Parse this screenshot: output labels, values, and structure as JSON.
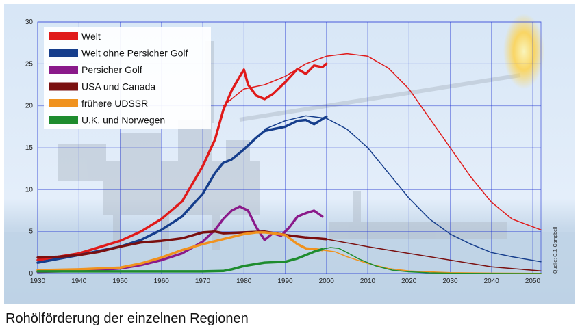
{
  "caption": "Rohölförderung der einzelnen Regionen",
  "source_note": "Quelle: C.J. Campbell",
  "chart_data": {
    "type": "line",
    "title": "",
    "xlabel": "",
    "ylabel": "",
    "xlim": [
      1930,
      2052
    ],
    "ylim": [
      0,
      30
    ],
    "x_ticks": [
      "1930",
      "1940",
      "1950",
      "1960",
      "1970",
      "1980",
      "1990",
      "2000",
      "2010",
      "2020",
      "2030",
      "2040",
      "2050"
    ],
    "y_ticks": [
      "0",
      "5",
      "10",
      "15",
      "20",
      "25",
      "30"
    ],
    "grid": true,
    "legend_position": "top-left",
    "series": [
      {
        "name": "Welt",
        "color": "#e01a1a",
        "width": 3.5,
        "x": [
          1930,
          1940,
          1950,
          1955,
          1960,
          1965,
          1970,
          1973,
          1975,
          1977,
          1979,
          1980,
          1981,
          1983,
          1985,
          1987,
          1990,
          1993,
          1995,
          1997,
          1999,
          2000
        ],
        "y": [
          1.6,
          2.4,
          3.9,
          5.0,
          6.5,
          8.6,
          12.8,
          16.0,
          19.5,
          21.8,
          23.5,
          24.3,
          22.5,
          21.2,
          20.8,
          21.4,
          22.8,
          24.4,
          23.8,
          24.8,
          24.6,
          25.0
        ]
      },
      {
        "name": "Welt",
        "color": "#e01a1a",
        "width": 1.5,
        "x": [
          1975,
          1980,
          1985,
          1990,
          1995,
          2000,
          2005,
          2010,
          2015,
          2020,
          2025,
          2030,
          2035,
          2040,
          2045,
          2052
        ],
        "y": [
          20,
          22,
          22.5,
          23.5,
          25,
          25.9,
          26.2,
          25.9,
          24.5,
          22,
          18.5,
          15,
          11.5,
          8.5,
          6.5,
          5.2
        ]
      },
      {
        "name": "Welt ohne Persicher Golf",
        "color": "#163e8c",
        "width": 3.5,
        "x": [
          1930,
          1940,
          1950,
          1955,
          1960,
          1965,
          1970,
          1973,
          1975,
          1977,
          1980,
          1983,
          1985,
          1987,
          1990,
          1993,
          1995,
          1997,
          1999,
          2000
        ],
        "y": [
          1.3,
          2.2,
          3.2,
          4.0,
          5.2,
          6.8,
          9.5,
          12.0,
          13.2,
          13.6,
          14.8,
          16.2,
          17.0,
          17.2,
          17.5,
          18.2,
          18.3,
          17.8,
          18.4,
          18.7
        ]
      },
      {
        "name": "Welt ohne Persicher Golf",
        "color": "#163e8c",
        "width": 1.5,
        "x": [
          1985,
          1990,
          1995,
          2000,
          2005,
          2010,
          2015,
          2020,
          2025,
          2030,
          2035,
          2040,
          2045,
          2052
        ],
        "y": [
          17.2,
          18.2,
          18.8,
          18.5,
          17.2,
          15.0,
          12.0,
          9.0,
          6.5,
          4.7,
          3.5,
          2.5,
          2.0,
          1.4
        ]
      },
      {
        "name": "Persicher Golf",
        "color": "#8a1a8a",
        "width": 3.5,
        "x": [
          1930,
          1940,
          1950,
          1955,
          1960,
          1965,
          1970,
          1973,
          1975,
          1977,
          1979,
          1981,
          1983,
          1985,
          1987,
          1989,
          1991,
          1993,
          1995,
          1997,
          1999
        ],
        "y": [
          0.2,
          0.3,
          0.6,
          1.0,
          1.6,
          2.4,
          3.8,
          5.2,
          6.5,
          7.5,
          8.0,
          7.5,
          5.5,
          4.0,
          4.8,
          4.5,
          5.5,
          6.8,
          7.2,
          7.5,
          6.8
        ]
      },
      {
        "name": "USA und Canada",
        "color": "#7a1010",
        "width": 3.5,
        "x": [
          1930,
          1935,
          1940,
          1945,
          1950,
          1955,
          1960,
          1965,
          1970,
          1973,
          1975,
          1980,
          1985,
          1990,
          1995,
          2000
        ],
        "y": [
          1.9,
          2.0,
          2.2,
          2.6,
          3.2,
          3.7,
          3.9,
          4.2,
          4.9,
          5.0,
          4.8,
          4.9,
          5.0,
          4.6,
          4.3,
          4.1
        ]
      },
      {
        "name": "USA und Canada",
        "color": "#7a1010",
        "width": 1.5,
        "x": [
          2000,
          2010,
          2020,
          2030,
          2040,
          2052
        ],
        "y": [
          4.1,
          3.2,
          2.4,
          1.6,
          0.8,
          0.3
        ]
      },
      {
        "name": "frühere UDSSR",
        "color": "#f0921e",
        "width": 3.5,
        "x": [
          1930,
          1940,
          1950,
          1955,
          1960,
          1965,
          1970,
          1975,
          1980,
          1983,
          1985,
          1987,
          1990,
          1993,
          1995,
          1997,
          1999
        ],
        "y": [
          0.4,
          0.5,
          0.7,
          1.2,
          1.9,
          2.8,
          3.5,
          4.1,
          4.7,
          4.9,
          4.9,
          4.8,
          4.6,
          3.5,
          3.0,
          2.9,
          2.8
        ]
      },
      {
        "name": "frühere UDSSR",
        "color": "#f0921e",
        "width": 1.5,
        "x": [
          1999,
          2002,
          2005,
          2010,
          2015,
          2020,
          2030,
          2040,
          2052
        ],
        "y": [
          2.8,
          2.6,
          2.0,
          1.2,
          0.6,
          0.3,
          0.1,
          0.05,
          0.02
        ]
      },
      {
        "name": "U.K. und Norwegen",
        "color": "#1e8c2e",
        "width": 3.5,
        "x": [
          1930,
          1940,
          1950,
          1960,
          1970,
          1975,
          1977,
          1980,
          1985,
          1990,
          1993,
          1995,
          1997,
          1999
        ],
        "y": [
          0.25,
          0.25,
          0.25,
          0.25,
          0.25,
          0.3,
          0.5,
          0.9,
          1.3,
          1.4,
          1.8,
          2.2,
          2.6,
          2.9
        ]
      },
      {
        "name": "U.K. und Norwegen",
        "color": "#1e8c2e",
        "width": 1.5,
        "x": [
          1999,
          2001,
          2003,
          2005,
          2008,
          2012,
          2016,
          2020,
          2025,
          2030,
          2040,
          2052
        ],
        "y": [
          2.9,
          3.1,
          3.0,
          2.5,
          1.7,
          0.9,
          0.4,
          0.2,
          0.08,
          0.03,
          0.01,
          0.0
        ]
      }
    ],
    "legend": [
      {
        "label": "Welt",
        "color": "#e01a1a"
      },
      {
        "label": "Welt ohne Persicher Golf",
        "color": "#163e8c"
      },
      {
        "label": "Persicher Golf",
        "color": "#8a1a8a"
      },
      {
        "label": "USA und Canada",
        "color": "#7a1010"
      },
      {
        "label": "frühere UDSSR",
        "color": "#f0921e"
      },
      {
        "label": "U.K. und Norwegen",
        "color": "#1e8c2e"
      }
    ]
  }
}
